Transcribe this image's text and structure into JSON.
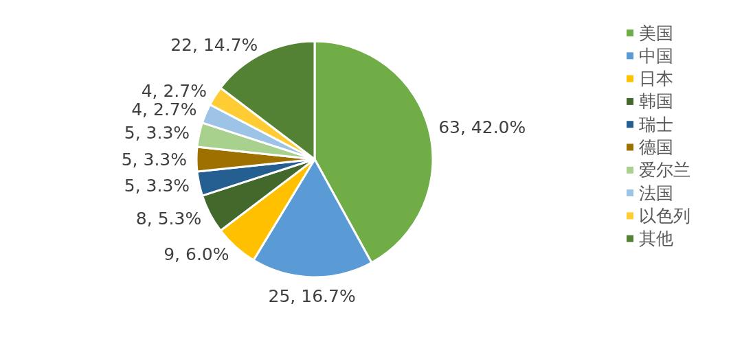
{
  "chart_data": {
    "type": "pie",
    "categories": [
      "美国",
      "中国",
      "日本",
      "韩国",
      "瑞士",
      "德国",
      "爱尔兰",
      "法国",
      "以色列",
      "其他"
    ],
    "values": [
      63,
      25,
      9,
      8,
      5,
      5,
      5,
      4,
      4,
      22
    ],
    "colors": [
      "#70ad47",
      "#5b9bd5",
      "#ffc000",
      "#43682b",
      "#255e91",
      "#9e7000",
      "#a9d18e",
      "#9dc3e6",
      "#ffcd33",
      "#548235"
    ],
    "value_labels": [
      "63, 42.0%",
      "25, 16.7%",
      "9, 6.0%",
      "8, 5.3%",
      "5, 3.3%",
      "5, 3.3%",
      "5, 3.3%",
      "4, 2.7%",
      "4, 2.7%",
      "22, 14.7%"
    ],
    "legend": "right"
  }
}
